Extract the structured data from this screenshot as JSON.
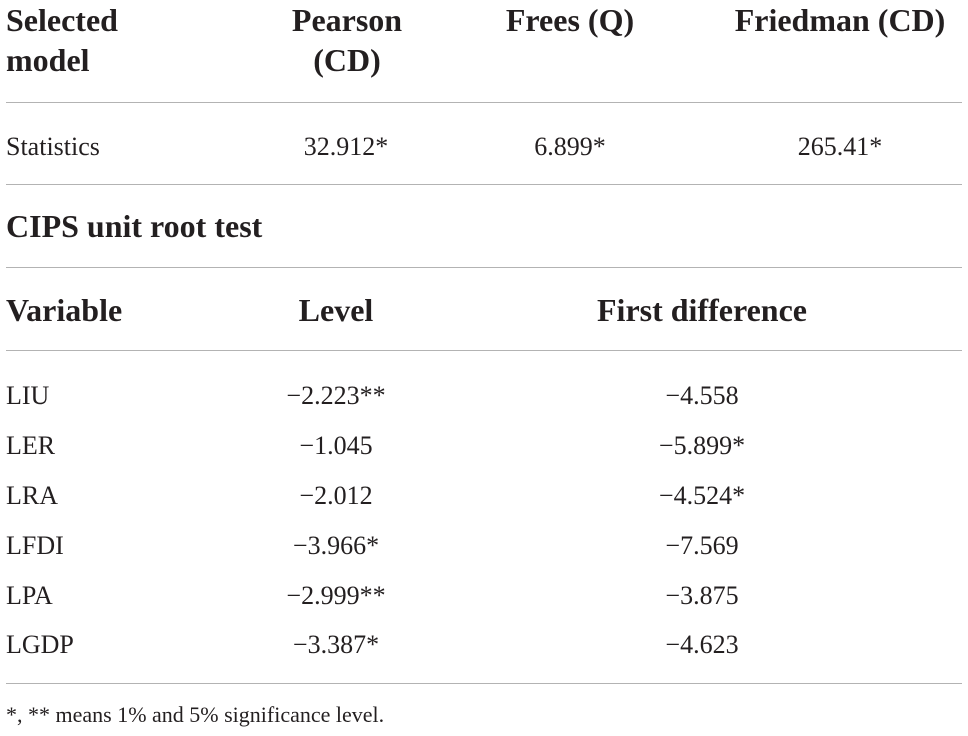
{
  "top_table": {
    "headers": {
      "col1_line1": "Selected",
      "col1_line2": "model",
      "col2_line1": "Pearson",
      "col2_line2": "(CD)",
      "col3": "Frees (Q)",
      "col4": "Friedman (CD)"
    },
    "row": {
      "label": "Statistics",
      "pearson": "32.912*",
      "frees": "6.899*",
      "friedman": "265.41*"
    }
  },
  "section_title": "CIPS unit root test",
  "cips_table": {
    "headers": {
      "variable": "Variable",
      "level": "Level",
      "first_difference": "First difference"
    },
    "rows": [
      {
        "variable": "LIU",
        "level": "−2.223**",
        "first_difference": "−4.558"
      },
      {
        "variable": "LER",
        "level": "−1.045",
        "first_difference": "−5.899*"
      },
      {
        "variable": "LRA",
        "level": "−2.012",
        "first_difference": "−4.524*"
      },
      {
        "variable": "LFDI",
        "level": "−3.966*",
        "first_difference": "−7.569"
      },
      {
        "variable": "LPA",
        "level": "−2.999**",
        "first_difference": "−3.875"
      },
      {
        "variable": "LGDP",
        "level": "−3.387*",
        "first_difference": "−4.623"
      }
    ]
  },
  "footnote": "*, ** means 1% and 5% significance level."
}
